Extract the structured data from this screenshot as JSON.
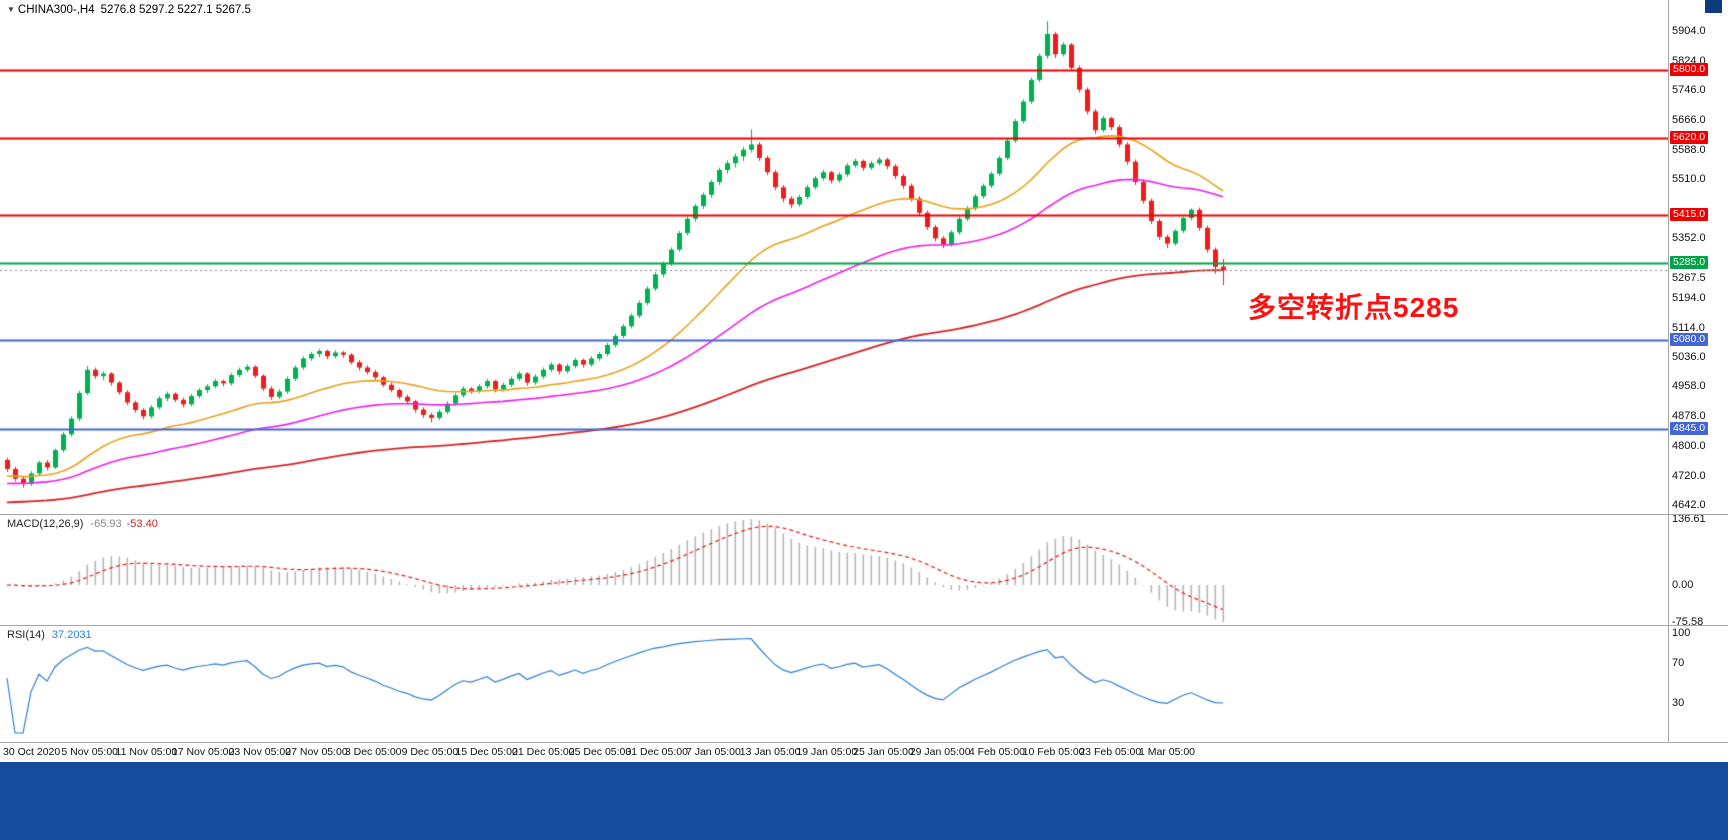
{
  "title": {
    "symbol": "CHINA300-,H4",
    "ohlc": "5276.8 5297.2 5227.1 5267.5"
  },
  "annotation": {
    "text": "多空转折点5285",
    "color": "#fe1010"
  },
  "chart_data": {
    "type": "candlestick",
    "symbol": "CHINA300-",
    "timeframe": "H4",
    "title": "CHINA300-,H4 5276.8 5297.2 5227.1 5267.5",
    "price_axis": {
      "ticks": [
        5904.0,
        5824.0,
        5746.0,
        5666.0,
        5588.0,
        5510.0,
        5352.0,
        5194.0,
        5114.0,
        5036.0,
        4958.0,
        4878.0,
        4800.0,
        4720.0,
        4642.0
      ],
      "current_price": 5267.5,
      "range": [
        4642.0,
        5904.0
      ]
    },
    "levels": [
      {
        "price": 5800.0,
        "color": "#ee0000",
        "kind": "resistance"
      },
      {
        "price": 5620.0,
        "color": "#ee0000",
        "kind": "resistance"
      },
      {
        "price": 5415.0,
        "color": "#ee0000",
        "kind": "resistance"
      },
      {
        "price": 5285.0,
        "color": "#00a447",
        "kind": "pivot"
      },
      {
        "price": 5080.0,
        "color": "#4466d0",
        "kind": "support"
      },
      {
        "price": 4845.0,
        "color": "#4466d0",
        "kind": "support"
      }
    ],
    "x_labels": [
      "30 Oct 2020",
      "5 Nov 05:00",
      "11 Nov 05:00",
      "17 Nov 05:00",
      "23 Nov 05:00",
      "27 Nov 05:00",
      "3 Dec 05:00",
      "9 Dec 05:00",
      "15 Dec 05:00",
      "21 Dec 05:00",
      "25 Dec 05:00",
      "31 Dec 05:00",
      "7 Jan 05:00",
      "13 Jan 05:00",
      "19 Jan 05:00",
      "25 Jan 05:00",
      "29 Jan 05:00",
      "4 Feb 05:00",
      "10 Feb 05:00",
      "23 Feb 05:00",
      "1 Mar 05:00"
    ],
    "moving_averages": [
      {
        "name": "ma-fast",
        "period": 30,
        "color": "#e8a21e"
      },
      {
        "name": "ma-medium",
        "period": 60,
        "color": "#ee1eee"
      },
      {
        "name": "ma-slow",
        "period": 150,
        "color": "#d62222"
      }
    ],
    "style": {
      "up_candle": "#00b050",
      "down_candle": "#ee1c1c",
      "macd_histogram": "#b6b6b6",
      "macd_signal": "#e02020",
      "rsi_line": "#2b7fd4",
      "bid_line": "#888888"
    },
    "indicators": {
      "macd": {
        "label": "MACD(12,26,9)",
        "value_main": "-65.93",
        "value_signal": "-53.40",
        "params": [
          12,
          26,
          9
        ],
        "axis_ticks": [
          136.61,
          0.0,
          -75.58
        ]
      },
      "rsi": {
        "label": "RSI(14)",
        "value": "37.2031",
        "period": 14,
        "axis_ticks": [
          100,
          70,
          30
        ]
      }
    },
    "candles": [
      [
        4762,
        4768,
        4730,
        4738
      ],
      [
        4738,
        4744,
        4705,
        4712
      ],
      [
        4712,
        4718,
        4688,
        4698
      ],
      [
        4698,
        4732,
        4692,
        4726
      ],
      [
        4726,
        4760,
        4720,
        4755
      ],
      [
        4755,
        4762,
        4734,
        4742
      ],
      [
        4742,
        4792,
        4738,
        4788
      ],
      [
        4788,
        4836,
        4782,
        4830
      ],
      [
        4830,
        4878,
        4824,
        4872
      ],
      [
        4872,
        4946,
        4866,
        4940
      ],
      [
        4940,
        5012,
        4935,
        5002
      ],
      [
        5002,
        5008,
        4978,
        4985
      ],
      [
        4985,
        4998,
        4975,
        4992
      ],
      [
        4992,
        4996,
        4960,
        4968
      ],
      [
        4968,
        4972,
        4936,
        4942
      ],
      [
        4942,
        4948,
        4908,
        4915
      ],
      [
        4915,
        4920,
        4888,
        4895
      ],
      [
        4895,
        4900,
        4870,
        4878
      ],
      [
        4878,
        4908,
        4872,
        4902
      ],
      [
        4902,
        4932,
        4896,
        4926
      ],
      [
        4926,
        4944,
        4918,
        4938
      ],
      [
        4938,
        4942,
        4916,
        4922
      ],
      [
        4922,
        4928,
        4902,
        4910
      ],
      [
        4910,
        4938,
        4905,
        4932
      ],
      [
        4932,
        4954,
        4926,
        4948
      ],
      [
        4948,
        4964,
        4940,
        4958
      ],
      [
        4958,
        4978,
        4952,
        4972
      ],
      [
        4972,
        4976,
        4958,
        4966
      ],
      [
        4966,
        4994,
        4960,
        4988
      ],
      [
        4988,
        5008,
        4982,
        5002
      ],
      [
        5002,
        5016,
        4996,
        5010
      ],
      [
        5010,
        5014,
        4980,
        4986
      ],
      [
        4986,
        4990,
        4946,
        4952
      ],
      [
        4952,
        4958,
        4922,
        4930
      ],
      [
        4930,
        4950,
        4924,
        4944
      ],
      [
        4944,
        4984,
        4938,
        4978
      ],
      [
        4978,
        5014,
        4972,
        5008
      ],
      [
        5008,
        5038,
        5002,
        5032
      ],
      [
        5032,
        5050,
        5026,
        5044
      ],
      [
        5044,
        5058,
        5036,
        5052
      ],
      [
        5052,
        5056,
        5030,
        5038
      ],
      [
        5038,
        5054,
        5032,
        5048
      ],
      [
        5048,
        5052,
        5034,
        5042
      ],
      [
        5042,
        5046,
        5016,
        5022
      ],
      [
        5022,
        5028,
        5000,
        5008
      ],
      [
        5008,
        5014,
        4990,
        4996
      ],
      [
        4996,
        5002,
        4976,
        4982
      ],
      [
        4982,
        4986,
        4956,
        4962
      ],
      [
        4962,
        4968,
        4942,
        4948
      ],
      [
        4948,
        4952,
        4924,
        4930
      ],
      [
        4930,
        4936,
        4910,
        4918
      ],
      [
        4918,
        4922,
        4888,
        4896
      ],
      [
        4896,
        4902,
        4874,
        4882
      ],
      [
        4882,
        4888,
        4862,
        4874
      ],
      [
        4874,
        4896,
        4868,
        4890
      ],
      [
        4890,
        4918,
        4884,
        4912
      ],
      [
        4912,
        4940,
        4906,
        4934
      ],
      [
        4934,
        4958,
        4928,
        4952
      ],
      [
        4952,
        4956,
        4938,
        4946
      ],
      [
        4946,
        4964,
        4940,
        4958
      ],
      [
        4958,
        4978,
        4952,
        4972
      ],
      [
        4972,
        4976,
        4942,
        4950
      ],
      [
        4950,
        4968,
        4944,
        4962
      ],
      [
        4962,
        4984,
        4956,
        4978
      ],
      [
        4978,
        4998,
        4972,
        4992
      ],
      [
        4992,
        4996,
        4960,
        4968
      ],
      [
        4968,
        4990,
        4962,
        4984
      ],
      [
        4984,
        5008,
        4978,
        5002
      ],
      [
        5002,
        5022,
        4996,
        5016
      ],
      [
        5016,
        5020,
        4990,
        4998
      ],
      [
        4998,
        5018,
        4992,
        5012
      ],
      [
        5012,
        5034,
        5006,
        5028
      ],
      [
        5028,
        5032,
        5008,
        5016
      ],
      [
        5016,
        5038,
        5010,
        5032
      ],
      [
        5032,
        5050,
        5026,
        5044
      ],
      [
        5044,
        5074,
        5038,
        5068
      ],
      [
        5068,
        5098,
        5062,
        5092
      ],
      [
        5092,
        5124,
        5086,
        5118
      ],
      [
        5118,
        5152,
        5112,
        5146
      ],
      [
        5146,
        5186,
        5140,
        5180
      ],
      [
        5180,
        5224,
        5174,
        5218
      ],
      [
        5218,
        5262,
        5212,
        5256
      ],
      [
        5256,
        5290,
        5248,
        5284
      ],
      [
        5284,
        5328,
        5278,
        5322
      ],
      [
        5322,
        5372,
        5316,
        5366
      ],
      [
        5366,
        5410,
        5360,
        5404
      ],
      [
        5404,
        5444,
        5396,
        5438
      ],
      [
        5438,
        5474,
        5430,
        5468
      ],
      [
        5468,
        5508,
        5460,
        5502
      ],
      [
        5502,
        5540,
        5494,
        5534
      ],
      [
        5534,
        5560,
        5524,
        5552
      ],
      [
        5552,
        5578,
        5540,
        5570
      ],
      [
        5570,
        5596,
        5558,
        5588
      ],
      [
        5588,
        5642,
        5580,
        5602
      ],
      [
        5602,
        5608,
        5558,
        5566
      ],
      [
        5566,
        5572,
        5520,
        5528
      ],
      [
        5528,
        5534,
        5480,
        5488
      ],
      [
        5488,
        5494,
        5448,
        5458
      ],
      [
        5458,
        5464,
        5432,
        5442
      ],
      [
        5442,
        5468,
        5436,
        5462
      ],
      [
        5462,
        5494,
        5456,
        5488
      ],
      [
        5488,
        5518,
        5482,
        5512
      ],
      [
        5512,
        5534,
        5506,
        5528
      ],
      [
        5528,
        5532,
        5498,
        5506
      ],
      [
        5506,
        5528,
        5500,
        5522
      ],
      [
        5522,
        5552,
        5516,
        5546
      ],
      [
        5546,
        5564,
        5540,
        5558
      ],
      [
        5558,
        5562,
        5532,
        5540
      ],
      [
        5540,
        5558,
        5534,
        5552
      ],
      [
        5552,
        5568,
        5546,
        5562
      ],
      [
        5562,
        5566,
        5536,
        5544
      ],
      [
        5544,
        5550,
        5510,
        5518
      ],
      [
        5518,
        5524,
        5484,
        5492
      ],
      [
        5492,
        5498,
        5450,
        5458
      ],
      [
        5458,
        5464,
        5412,
        5420
      ],
      [
        5420,
        5426,
        5374,
        5382
      ],
      [
        5382,
        5388,
        5344,
        5352
      ],
      [
        5352,
        5358,
        5326,
        5336
      ],
      [
        5336,
        5374,
        5330,
        5368
      ],
      [
        5368,
        5410,
        5362,
        5404
      ],
      [
        5404,
        5438,
        5398,
        5432
      ],
      [
        5432,
        5470,
        5426,
        5464
      ],
      [
        5464,
        5498,
        5458,
        5492
      ],
      [
        5492,
        5530,
        5486,
        5524
      ],
      [
        5524,
        5572,
        5518,
        5566
      ],
      [
        5566,
        5618,
        5560,
        5612
      ],
      [
        5612,
        5670,
        5606,
        5664
      ],
      [
        5664,
        5722,
        5658,
        5716
      ],
      [
        5716,
        5780,
        5710,
        5774
      ],
      [
        5774,
        5844,
        5768,
        5838
      ],
      [
        5838,
        5930,
        5830,
        5896
      ],
      [
        5896,
        5902,
        5832,
        5842
      ],
      [
        5842,
        5874,
        5836,
        5868
      ],
      [
        5868,
        5872,
        5798,
        5806
      ],
      [
        5806,
        5812,
        5740,
        5748
      ],
      [
        5748,
        5754,
        5682,
        5690
      ],
      [
        5690,
        5696,
        5630,
        5640
      ],
      [
        5640,
        5678,
        5634,
        5672
      ],
      [
        5672,
        5676,
        5640,
        5648
      ],
      [
        5648,
        5654,
        5594,
        5602
      ],
      [
        5602,
        5608,
        5548,
        5556
      ],
      [
        5556,
        5562,
        5494,
        5502
      ],
      [
        5502,
        5508,
        5444,
        5452
      ],
      [
        5452,
        5458,
        5390,
        5398
      ],
      [
        5398,
        5404,
        5348,
        5356
      ],
      [
        5356,
        5362,
        5326,
        5338
      ],
      [
        5338,
        5376,
        5332,
        5372
      ],
      [
        5372,
        5410,
        5366,
        5406
      ],
      [
        5406,
        5432,
        5400,
        5428
      ],
      [
        5428,
        5434,
        5372,
        5380
      ],
      [
        5380,
        5386,
        5314,
        5322
      ],
      [
        5322,
        5328,
        5258,
        5276
      ],
      [
        5276.8,
        5297.2,
        5227.1,
        5267.5
      ]
    ]
  }
}
